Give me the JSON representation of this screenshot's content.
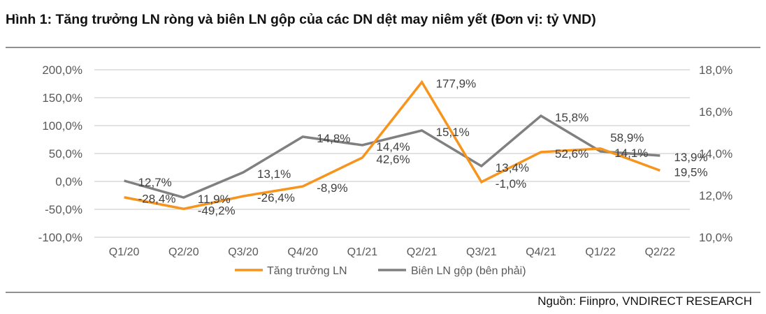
{
  "title": "Hình 1: Tăng trưởng LN ròng và biên LN gộp của các DN dệt may niêm yết (Đơn vị: tỷ VND)",
  "source": "Nguồn: Fiinpro, VNDIRECT RESEARCH",
  "chart_data": {
    "type": "line",
    "categories": [
      "Q1/20",
      "Q2/20",
      "Q3/20",
      "Q4/20",
      "Q1/21",
      "Q2/21",
      "Q3/21",
      "Q4/21",
      "Q1/22",
      "Q2/22"
    ],
    "series": [
      {
        "name": "Tăng trưởng LN",
        "axis": "left",
        "color": "#F7941D",
        "values": [
          -28.4,
          -49.2,
          -26.4,
          -8.9,
          42.6,
          177.9,
          -1.0,
          52.6,
          58.9,
          19.5
        ],
        "labels": [
          "-28,4%",
          "-49,2%",
          "-26,4%",
          "-8,9%",
          "42,6%",
          "177,9%",
          "-1,0%",
          "52,6%",
          "58,9%",
          "19,5%"
        ]
      },
      {
        "name": "Biên LN gộp (bên phải)",
        "axis": "right",
        "color": "#808080",
        "values": [
          12.7,
          11.9,
          13.1,
          14.8,
          14.4,
          15.1,
          13.4,
          15.8,
          14.1,
          13.9
        ],
        "labels": [
          "12,7%",
          "11,9%",
          "13,1%",
          "14,8%",
          "14,4%",
          "15,1%",
          "13,4%",
          "15,8%",
          "14,1%",
          "13,9%"
        ]
      }
    ],
    "y_left": {
      "range": [
        -100,
        200
      ],
      "ticks": [
        "-100,0%",
        "-50,0%",
        "0,0%",
        "50,0%",
        "100,0%",
        "150,0%",
        "200,0%"
      ]
    },
    "y_right": {
      "range": [
        10,
        18
      ],
      "ticks": [
        "10,0%",
        "12,0%",
        "14,0%",
        "16,0%",
        "18,0%"
      ]
    },
    "grid": true,
    "legend": "bottom"
  }
}
